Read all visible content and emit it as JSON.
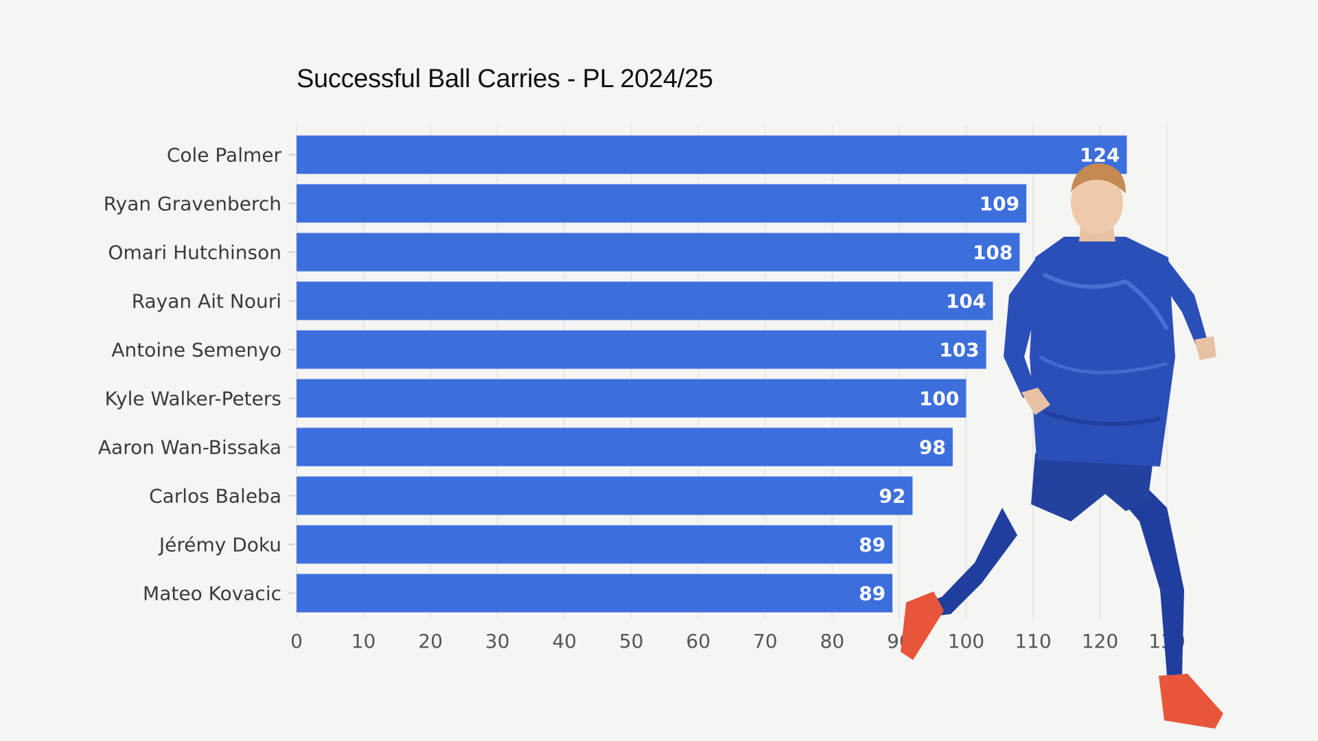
{
  "chart_data": {
    "type": "bar",
    "orientation": "horizontal",
    "title": "Successful Ball Carries - PL 2024/25",
    "categories": [
      "Cole Palmer",
      "Ryan Gravenberch",
      "Omari Hutchinson",
      "Rayan Ait Nouri",
      "Antoine Semenyo",
      "Kyle Walker-Peters",
      "Aaron Wan-Bissaka",
      "Carlos Baleba",
      "Jérémy Doku",
      "Mateo Kovacic"
    ],
    "values": [
      124,
      109,
      108,
      104,
      103,
      100,
      98,
      92,
      89,
      89
    ],
    "xticks": [
      "0",
      "10",
      "20",
      "30",
      "40",
      "50",
      "60",
      "70",
      "80",
      "90",
      "100",
      "110",
      "120",
      "130"
    ],
    "xlim": [
      0,
      130
    ],
    "grid": true,
    "data_labels": true,
    "colors": {
      "bar": "#3d6fdc",
      "label": "#ffffff",
      "category": "#3a3a3a",
      "tick": "#555555",
      "grid": "#e3e3e3",
      "background": "#f5f5f4"
    }
  },
  "decor": {
    "player_image": "footballer-in-blue-kit"
  }
}
